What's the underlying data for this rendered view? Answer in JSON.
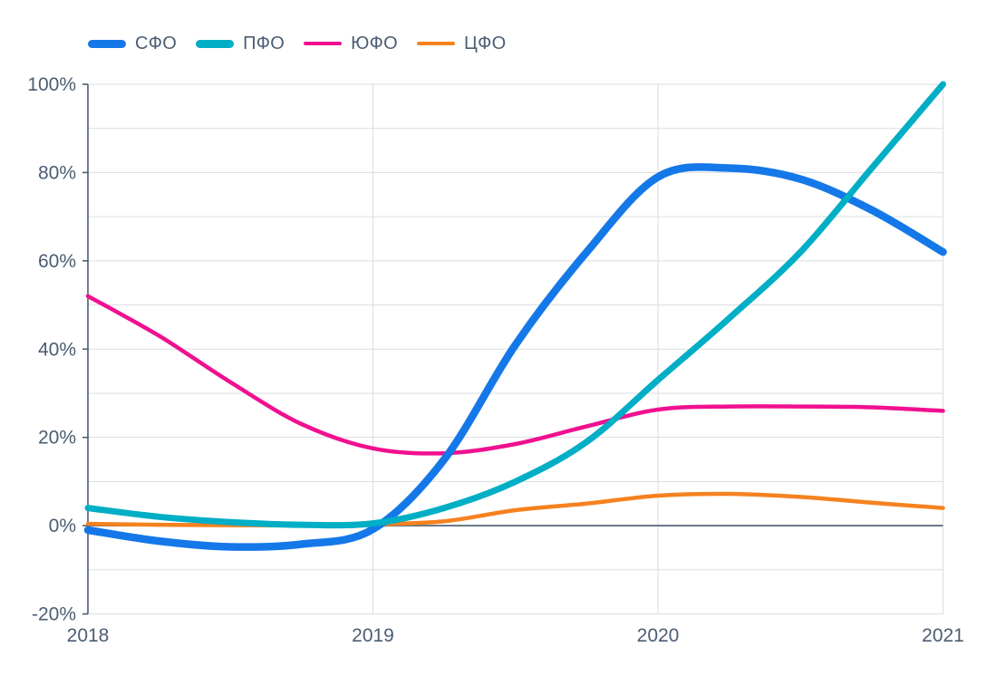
{
  "page": {
    "background": "#ffffff"
  },
  "legend": {
    "position": "top-left",
    "items": [
      {
        "label": "СФО",
        "color": "#1578E8",
        "weight": "thick"
      },
      {
        "label": "ПФО",
        "color": "#00AEC5",
        "weight": "thick"
      },
      {
        "label": "ЮФО",
        "color": "#F01090",
        "weight": "thin"
      },
      {
        "label": "ЦФО",
        "color": "#F5821F",
        "weight": "thin"
      }
    ]
  },
  "style": {
    "grid_color": "#DBDDE0",
    "zero_line_color": "#5F7183",
    "axis_color": "#4C5D73",
    "label_color": "#4C5D73"
  },
  "chart_data": {
    "type": "line",
    "title": "",
    "xlabel": "",
    "ylabel": "",
    "xlim": [
      2018,
      2021
    ],
    "ylim": [
      -20,
      100
    ],
    "y_minor_grid_step": 10,
    "grid": true,
    "zero_line": true,
    "legend_position": "top-left",
    "x": [
      2018,
      2018.25,
      2018.5,
      2018.75,
      2019,
      2019.25,
      2019.5,
      2019.75,
      2020,
      2020.25,
      2020.5,
      2020.75,
      2021
    ],
    "series": [
      {
        "name": "СФО",
        "color": "#1578E8",
        "line_width": 8.5,
        "values": [
          -1,
          -3.5,
          -4.8,
          -4.2,
          -0.8,
          15,
          41,
          62,
          79,
          81,
          78.5,
          71.5,
          62
        ]
      },
      {
        "name": "ПФО",
        "color": "#00AEC5",
        "line_width": 7,
        "values": [
          4,
          2,
          0.8,
          0.2,
          0.5,
          4,
          10,
          19,
          33,
          47,
          62,
          81,
          100
        ]
      },
      {
        "name": "ЮФО",
        "color": "#F01090",
        "line_width": 4.5,
        "values": [
          52,
          43,
          32.5,
          23,
          17.5,
          16.4,
          18.5,
          22.5,
          26.3,
          27,
          27,
          26.8,
          26
        ]
      },
      {
        "name": "ЦФО",
        "color": "#F5821F",
        "line_width": 4.5,
        "values": [
          0.4,
          0.2,
          0.1,
          0.1,
          0.3,
          1,
          3.5,
          5,
          6.8,
          7.2,
          6.5,
          5.2,
          4
        ]
      }
    ],
    "draw_order": [
      3,
      2,
      0,
      1
    ],
    "x_ticks": [
      {
        "value": 2018,
        "label": "2018"
      },
      {
        "value": 2019,
        "label": "2019"
      },
      {
        "value": 2020,
        "label": "2020"
      },
      {
        "value": 2021,
        "label": "2021"
      }
    ],
    "y_ticks": [
      {
        "value": 100,
        "label": "100%"
      },
      {
        "value": 80,
        "label": "80%"
      },
      {
        "value": 60,
        "label": "60%"
      },
      {
        "value": 40,
        "label": "40%"
      },
      {
        "value": 20,
        "label": "20%"
      },
      {
        "value": 0,
        "label": "0%"
      },
      {
        "value": -20,
        "label": "-20%"
      }
    ]
  }
}
